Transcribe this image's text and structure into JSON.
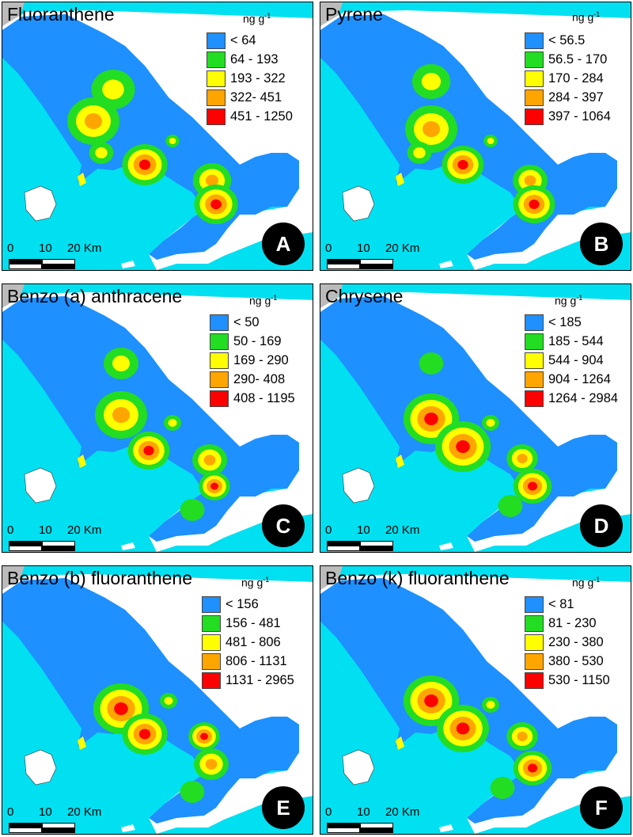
{
  "colors": {
    "sea": "#00e0f0",
    "class1": "#1e90ff",
    "class2": "#22dd22",
    "class3": "#ffff00",
    "class4": "#ffa500",
    "class5": "#ff0000",
    "land_outside": "#ffffff",
    "corner_land": "#bbbbbb"
  },
  "unit_label": "ng g",
  "unit_exponent": "-1",
  "scale": {
    "l0": "0",
    "l10": "10",
    "l20": "20 Km"
  },
  "panels": [
    {
      "title": "Fluoranthene",
      "badge": "A",
      "classes": [
        "< 64",
        "64 - 193",
        "193 - 322",
        "322- 451",
        "451 - 1250"
      ]
    },
    {
      "title": "Pyrene",
      "badge": "B",
      "classes": [
        "< 56.5",
        "56.5 - 170",
        "170 - 284",
        "284 - 397",
        "397 - 1064"
      ]
    },
    {
      "title": "Benzo (a) anthracene",
      "badge": "C",
      "classes": [
        "< 50",
        "50 - 169",
        "169 - 290",
        "290- 408",
        "408 - 1195"
      ]
    },
    {
      "title": "Chrysene",
      "badge": "D",
      "classes": [
        "< 185",
        "185 - 544",
        "544 - 904",
        "904 - 1264",
        "1264 - 2984"
      ]
    },
    {
      "title": "Benzo (b) fluoranthene",
      "badge": "E",
      "classes": [
        "< 156",
        "156 - 481",
        "481 - 806",
        "806 - 1131",
        "1131 - 2965"
      ]
    },
    {
      "title": "Benzo (k) fluoranthene",
      "badge": "F",
      "classes": [
        "< 81",
        "81 - 230",
        "230 - 380",
        "380 - 530",
        "530 - 1150"
      ]
    }
  ]
}
